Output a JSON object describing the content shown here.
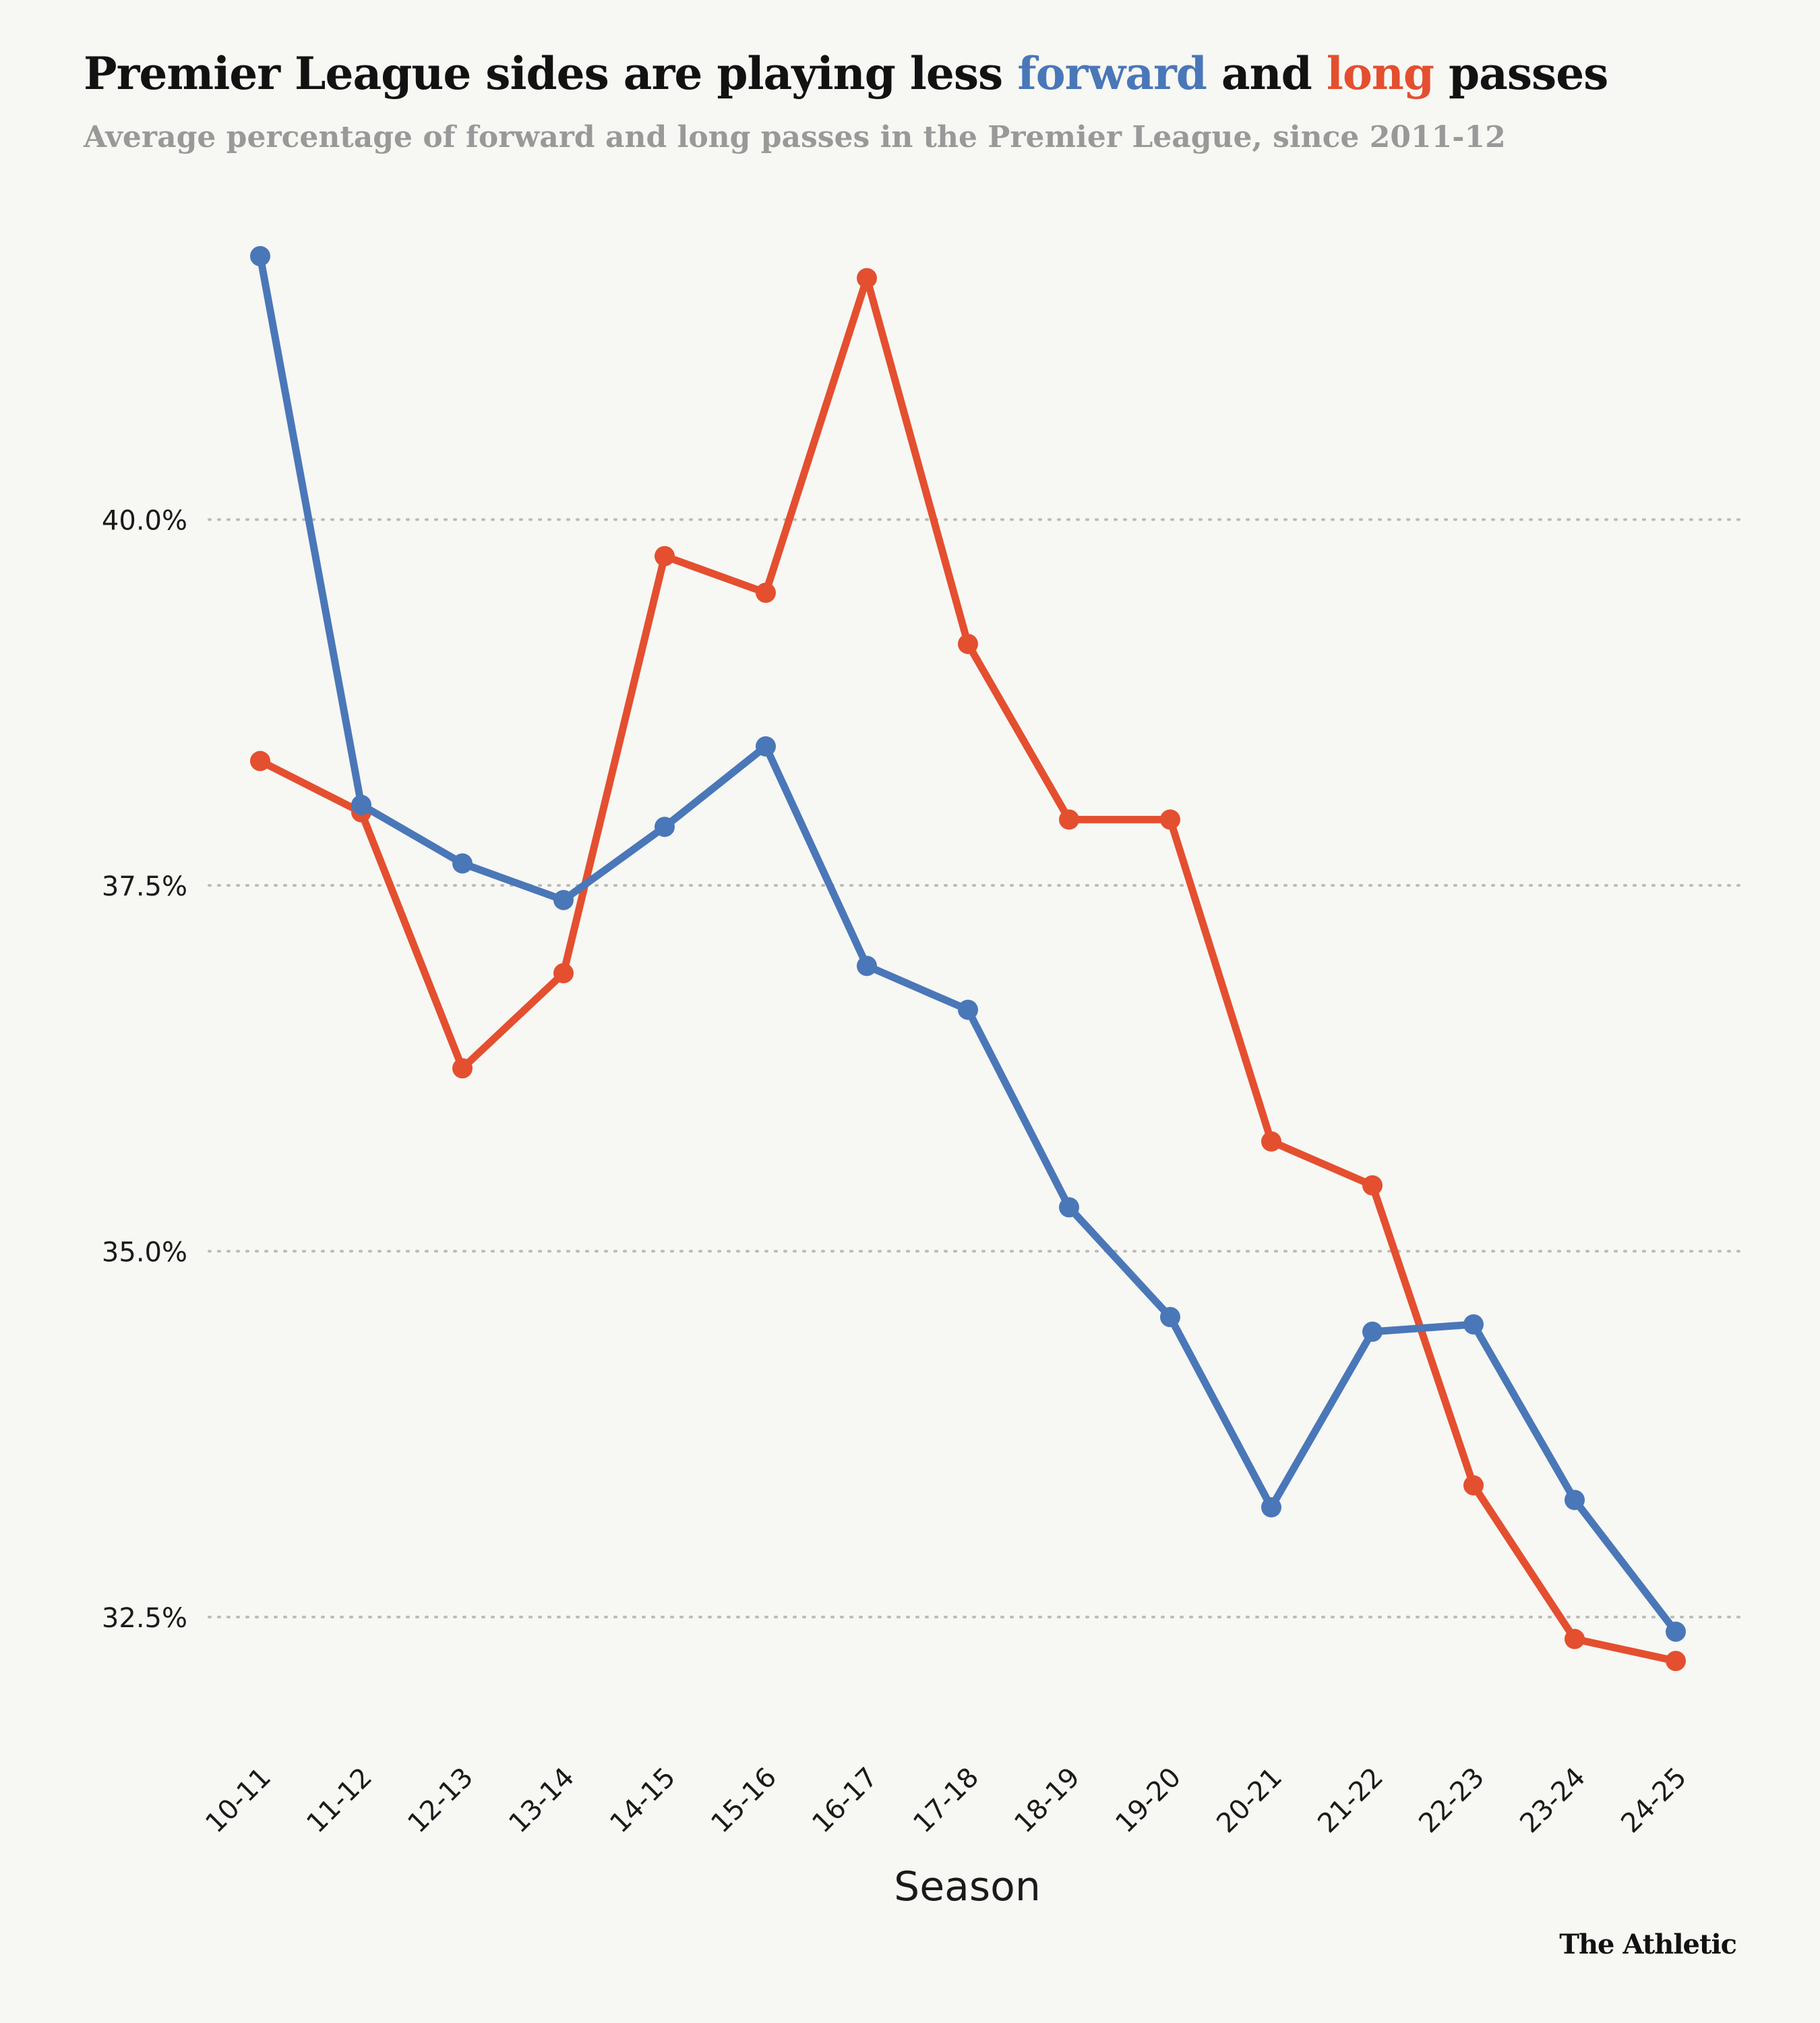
{
  "title": {
    "prefix": "Premier League sides are playing less ",
    "forward_word": "forward",
    "middle": " and ",
    "long_word": "long",
    "suffix": " passes"
  },
  "subtitle": "Average percentage of forward and long passes in the Premier League, since 2011-12",
  "logo": "The Athletic",
  "colors": {
    "forward": "#4a77b8",
    "long": "#e44f2f",
    "grid": "#bbbbbb",
    "text": "#1a1a1a"
  },
  "chart_data": {
    "type": "line",
    "title": "Premier League sides are playing less forward and long passes",
    "subtitle": "Average percentage of forward and long passes in the Premier League, since 2011-12",
    "xlabel": "Season",
    "ylabel": "",
    "categories": [
      "10-11",
      "11-12",
      "12-13",
      "13-14",
      "14-15",
      "15-16",
      "16-17",
      "17-18",
      "18-19",
      "19-20",
      "20-21",
      "21-22",
      "22-23",
      "23-24",
      "24-25"
    ],
    "series": [
      {
        "name": "forward",
        "color": "#4a77b8",
        "values": [
          41.8,
          38.05,
          37.65,
          37.4,
          37.9,
          38.45,
          36.95,
          36.65,
          35.3,
          34.55,
          33.25,
          34.45,
          34.5,
          33.3,
          32.4
        ]
      },
      {
        "name": "long",
        "color": "#e44f2f",
        "values": [
          38.35,
          38.0,
          36.25,
          36.9,
          39.75,
          39.5,
          41.65,
          39.15,
          37.95,
          37.95,
          35.75,
          35.45,
          33.4,
          32.35,
          32.2
        ]
      }
    ],
    "yticks": [
      32.5,
      35.0,
      37.5,
      40.0
    ],
    "ytick_labels": [
      "32.5%",
      "35.0%",
      "37.5%",
      "40.0%"
    ],
    "ylim": [
      31.6,
      43.5
    ],
    "grid": true,
    "legend": "none (series identified by colored words in the title)"
  }
}
